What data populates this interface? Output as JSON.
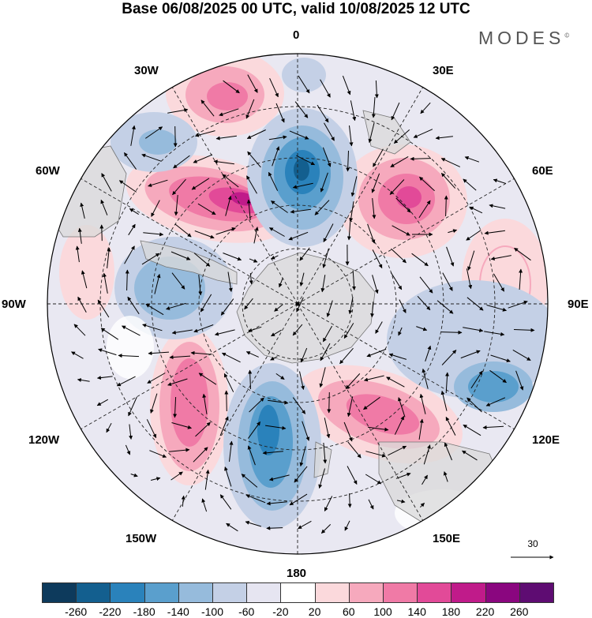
{
  "header": {
    "title": "Base 06/08/2025 00 UTC, valid 10/08/2025 12 UTC",
    "brand": "MODES"
  },
  "map": {
    "projection": "south-polar-stereographic",
    "longitude_labels": {
      "top": "0",
      "bottom": "180",
      "left": "90W",
      "right": "90E",
      "lon30w": "30W",
      "lon30e": "30E",
      "lon60w": "60W",
      "lon60e": "60E",
      "lon120w": "120W",
      "lon120e": "120E",
      "lon150w": "150W",
      "lon150e": "150E"
    },
    "reference_vector_label": "30"
  },
  "colorbar": {
    "ticks": [
      "-260",
      "-220",
      "-180",
      "-140",
      "-100",
      "-60",
      "-20",
      "20",
      "60",
      "100",
      "140",
      "180",
      "220",
      "260"
    ],
    "colors": [
      "#0d3a5c",
      "#135f8f",
      "#2a82bb",
      "#5a9fcd",
      "#96bbdc",
      "#c4d0e6",
      "#e6e5f1",
      "#ffffff",
      "#fbd9dc",
      "#f6a9bd",
      "#f07aa6",
      "#e24a98",
      "#c01b8a",
      "#8a067f",
      "#5e0c72"
    ]
  }
}
